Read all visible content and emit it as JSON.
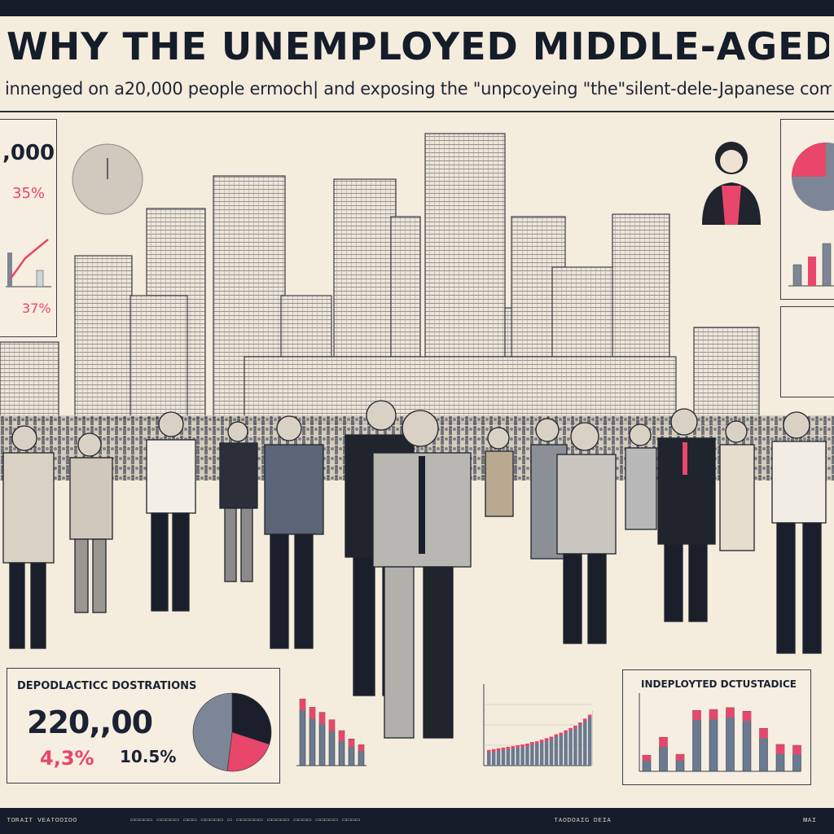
{
  "header": {
    "title": "WHY THE UNEMPLOYED MIDDLE-AGED MEN ?",
    "subtitle": "innenged on a20,000 people ermoch| and exposing the \"unpcoyeing \"the\"silent-dele-Japanese companies?'"
  },
  "left_panel": {
    "stat_top": ",000",
    "pct_top": "35%",
    "pct_bottom": "37%"
  },
  "bottom_left_panel": {
    "heading": "DEPODLACTICC DOSTRATIONS",
    "big_value": "220,,00",
    "pct_left": "4,3%",
    "pct_right": "10.5%"
  },
  "bottom_right_panel": {
    "heading": "INDEPLOYTED DCTUSTADICE"
  },
  "colors": {
    "navy": "#151c2a",
    "pink": "#e8466a",
    "steel": "#6b7a90",
    "paper": "#f4ecdd"
  },
  "chart_data": [
    {
      "type": "bar",
      "series": [
        {
          "name": "",
          "values": [
            8,
            7,
            6.4,
            5.5,
            4.2,
            3.2,
            2.5
          ]
        }
      ],
      "highlight_color": "#e8466a"
    },
    {
      "type": "bar",
      "series": [
        {
          "name": "",
          "values": [
            2,
            2.1,
            2.2,
            2.3,
            2.4,
            2.5,
            2.6,
            2.7,
            2.8,
            3.0,
            3.1,
            3.3,
            3.5,
            3.7,
            4.0,
            4.2,
            4.5,
            4.8,
            5.1,
            5.5,
            6.0,
            6.5,
            7.0,
            9.6
          ]
        }
      ]
    },
    {
      "type": "bar",
      "series": [
        {
          "name": "",
          "values": [
            1.8,
            3.8,
            1.9,
            6.8,
            6.9,
            7.1,
            6.7,
            4.8,
            3.0,
            2.9
          ]
        }
      ]
    },
    {
      "type": "pie",
      "values": [
        30,
        22,
        48
      ],
      "colors": [
        "#1a1f2b",
        "#e8466a",
        "#7d8696"
      ]
    }
  ]
}
